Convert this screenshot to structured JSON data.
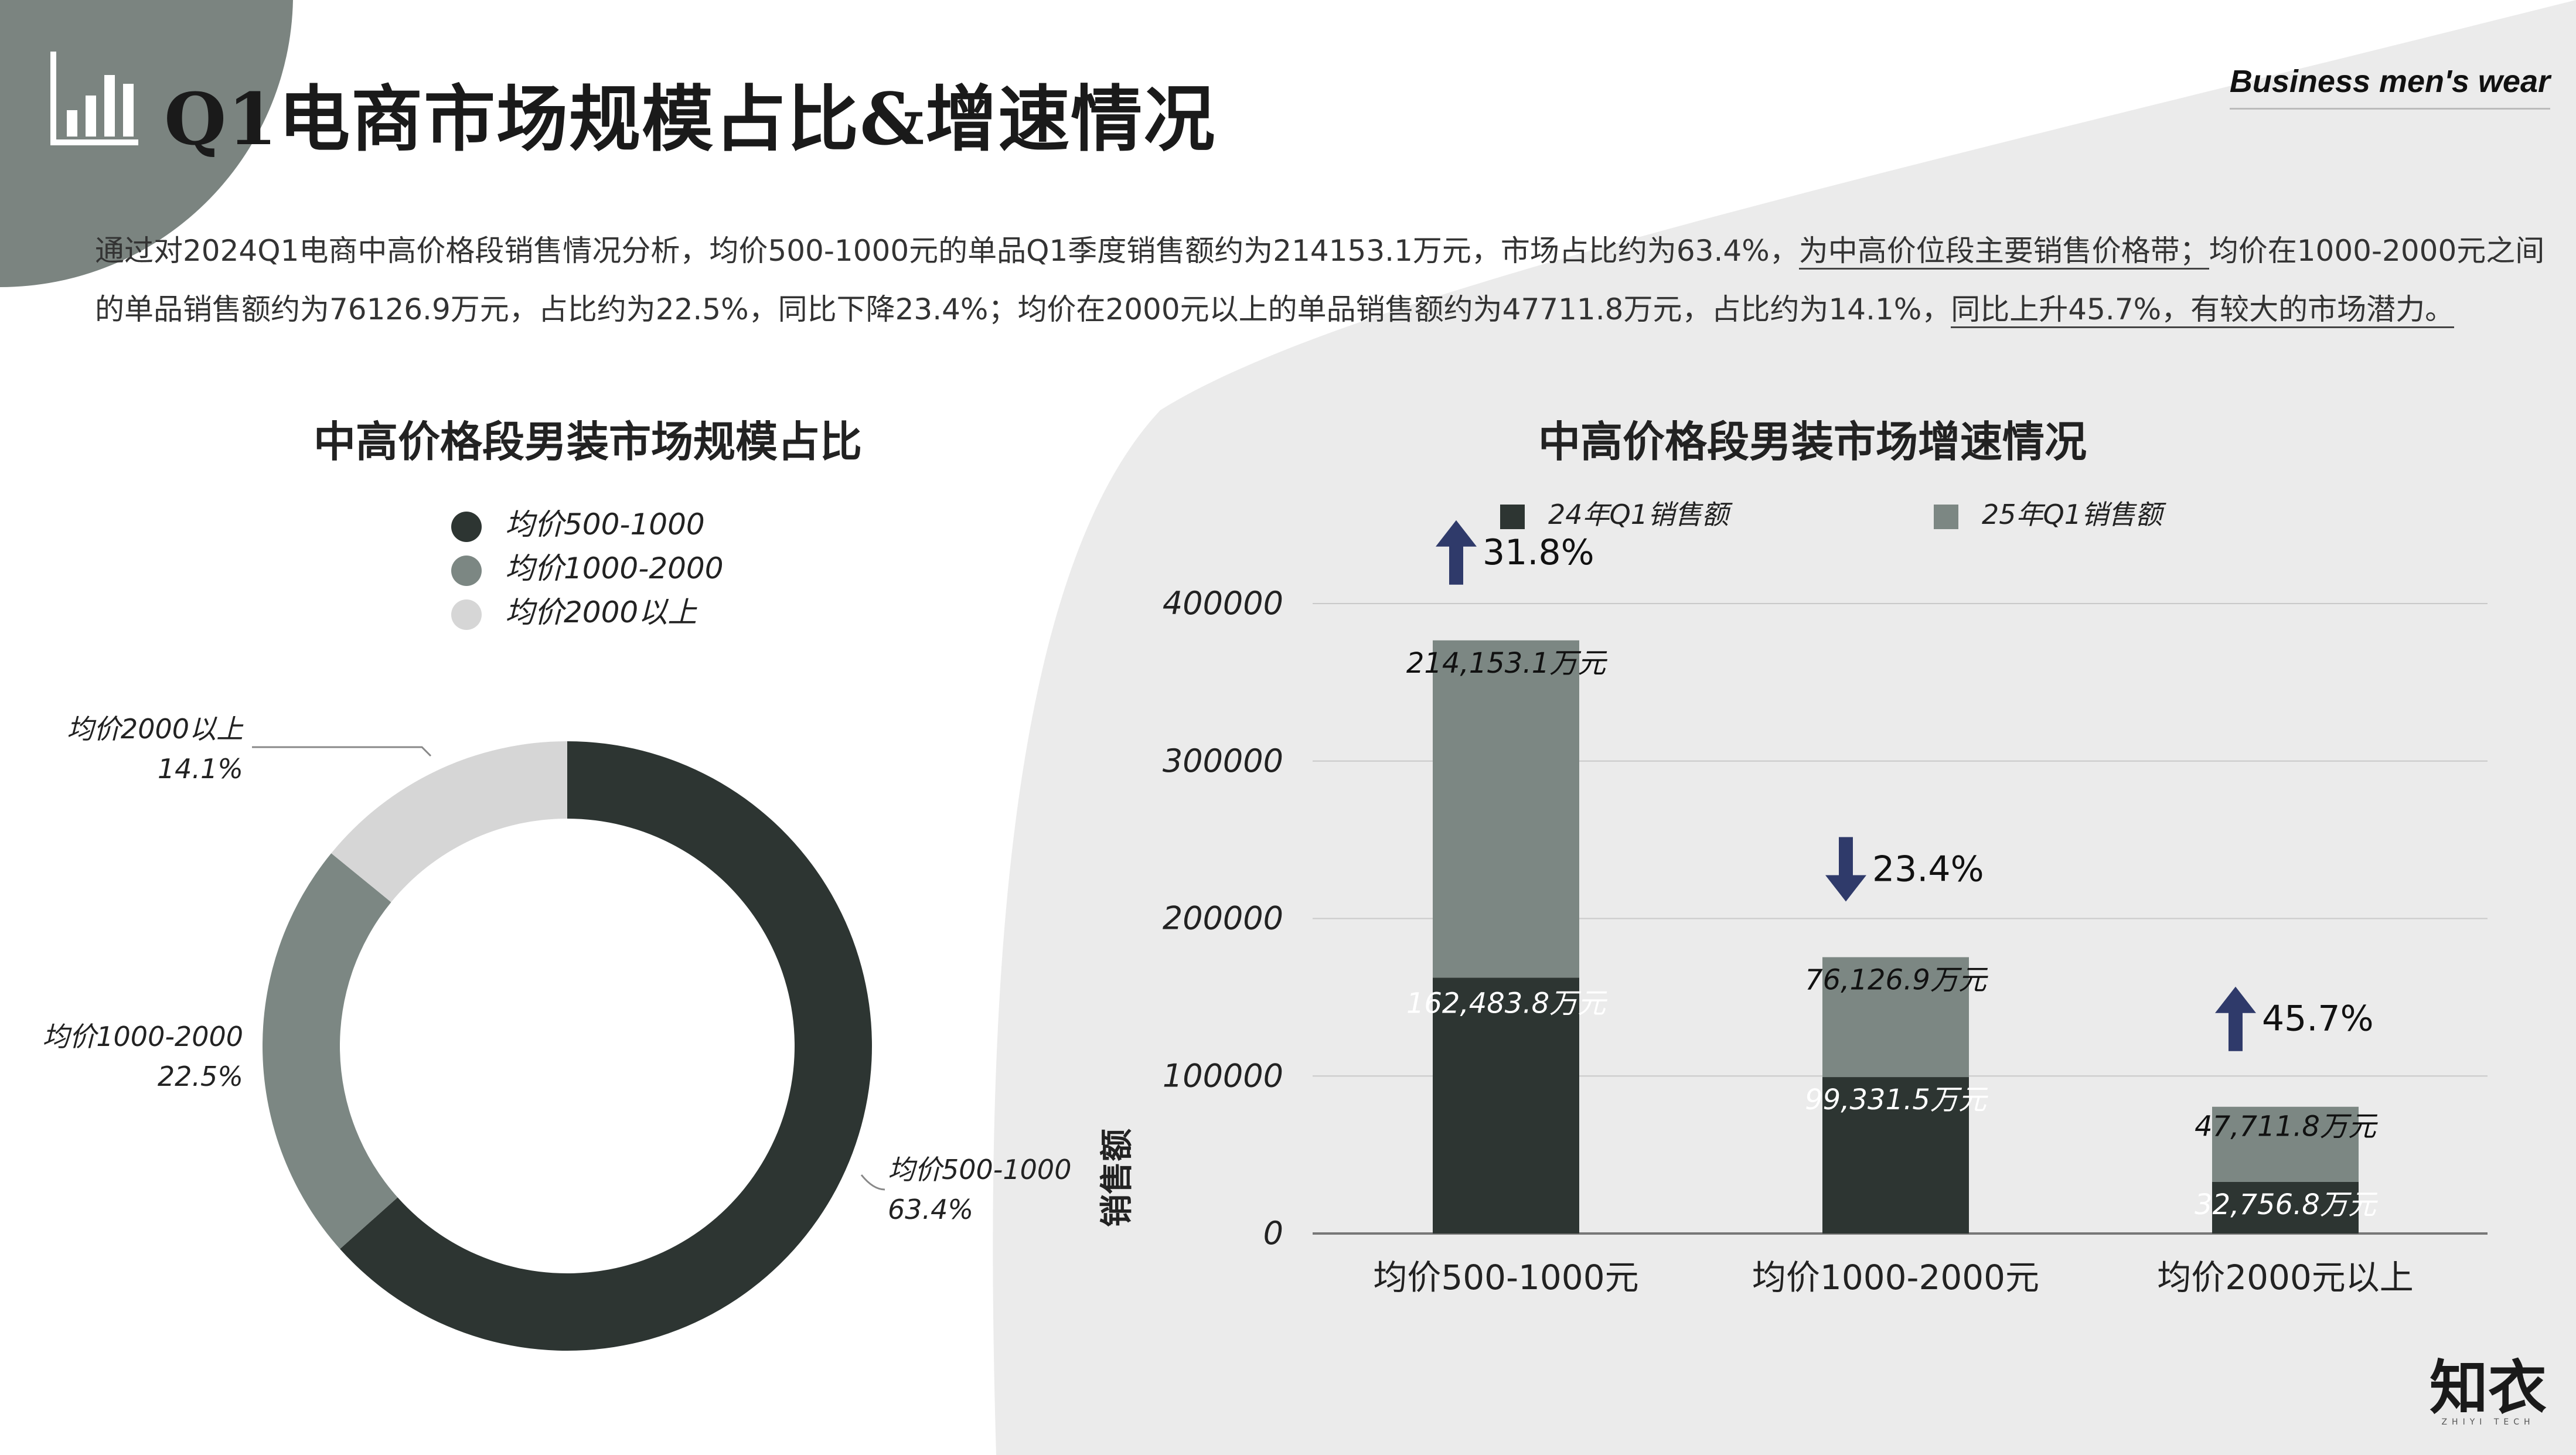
{
  "page": {
    "title": "Q1电商市场规模占比&增速情况",
    "brand_tag": "Business men's wear",
    "logo": "知衣",
    "logo_sub": "ZHIYI TECH",
    "intro": {
      "p1": "通过对2024Q1电商中高价格段销售情况分析，均价500-1000元的单品Q1季度销售额约为214153.1万元，市场占比约为63.4%，",
      "h1": "为中高价位段主要销售价格带；",
      "p2": "均价在1000-2000元之间的单品销售额约为76126.9万元，占比约为22.5%，同比下降23.4%；均价在2000元以上的单品销售额约为47711.8万元，占比约为14.1%，",
      "h2": "同比上升45.7%，有较大的市场潜力。"
    }
  },
  "colors": {
    "dark": "#2d3532",
    "mid": "#7c8783",
    "light": "#d6d6d6",
    "corner": "#7b8480",
    "panel": "#ebebeb",
    "arrow": "#2f3a6a"
  },
  "chart_data": [
    {
      "type": "pie",
      "title": "中高价格段男装市场规模占比",
      "legend": [
        "均价500-1000",
        "均价1000-2000",
        "均价2000以上"
      ],
      "slices": [
        {
          "label": "均价500-1000",
          "value": 63.4,
          "value_label": "63.4%"
        },
        {
          "label": "均价1000-2000",
          "value": 22.5,
          "value_label": "22.5%"
        },
        {
          "label": "均价2000以上",
          "value": 14.1,
          "value_label": "14.1%"
        }
      ]
    },
    {
      "type": "bar",
      "stacked": true,
      "title": "中高价格段男装市场增速情况",
      "ylabel": "销售额",
      "ylim": [
        0,
        400000
      ],
      "yticks": [
        "0",
        "100000",
        "200000",
        "300000",
        "400000"
      ],
      "categories": [
        "均价500-1000元",
        "均价1000-2000元",
        "均价2000元以上"
      ],
      "series": [
        {
          "name": "24年Q1销售额",
          "values": [
            162483.8,
            99331.5,
            32756.8
          ],
          "labels": [
            "162,483.8万元",
            "99,331.5万元",
            "32,756.8万元"
          ]
        },
        {
          "name": "25年Q1销售额",
          "values": [
            214153.1,
            76126.9,
            47711.8
          ],
          "labels": [
            "214,153.1万元",
            "76,126.9万元",
            "47,711.8万元"
          ]
        }
      ],
      "growth": [
        {
          "direction": "up",
          "label": "31.8%"
        },
        {
          "direction": "down",
          "label": "23.4%"
        },
        {
          "direction": "up",
          "label": "45.7%"
        }
      ]
    }
  ]
}
